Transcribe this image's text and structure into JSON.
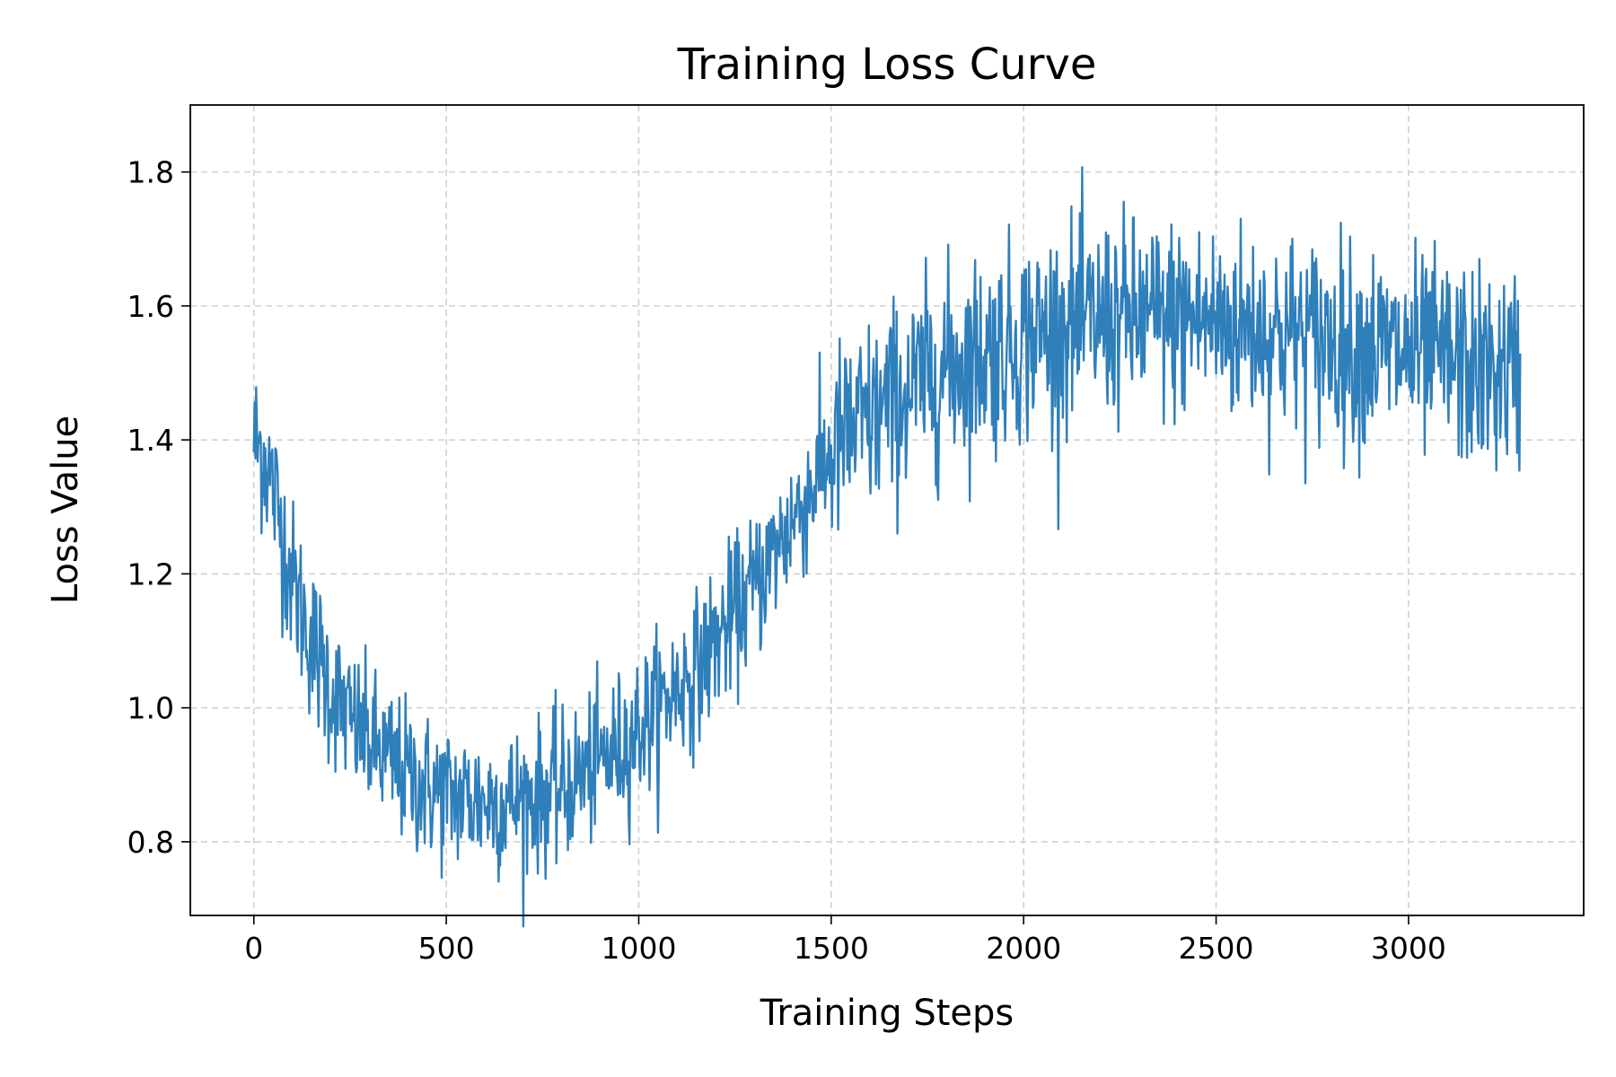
{
  "chart_data": {
    "type": "line",
    "title": "Training Loss Curve",
    "xlabel": "Training Steps",
    "ylabel": "Loss Value",
    "xlim": [
      -165,
      3455
    ],
    "ylim": [
      0.69,
      1.9
    ],
    "xticks": [
      0,
      500,
      1000,
      1500,
      2000,
      2500,
      3000
    ],
    "xtick_labels": [
      "0",
      "500",
      "1000",
      "1500",
      "2000",
      "2500",
      "3000"
    ],
    "yticks": [
      0.8,
      1.0,
      1.2,
      1.4,
      1.6,
      1.8
    ],
    "ytick_labels": [
      "0.8",
      "1.0",
      "1.2",
      "1.4",
      "1.6",
      "1.8"
    ],
    "grid": true,
    "color": "#2f7fbb",
    "series": [
      {
        "x": [
          0,
          25,
          50,
          75,
          100,
          150,
          200,
          250,
          300,
          350,
          400,
          450,
          500,
          550,
          600,
          650,
          700,
          750,
          800,
          850,
          900,
          950,
          1000,
          1050,
          1100,
          1150,
          1200,
          1250,
          1300,
          1350,
          1400,
          1450,
          1500,
          1550,
          1600,
          1650,
          1700,
          1750,
          1800,
          1850,
          1900,
          1950,
          2000,
          2050,
          2100,
          2150,
          2200,
          2250,
          2300,
          2350,
          2400,
          2450,
          2500,
          2550,
          2600,
          2650,
          2700,
          2750,
          2800,
          2850,
          2900,
          2950,
          3000,
          3050,
          3100,
          3150,
          3200,
          3250,
          3290
        ],
        "y": [
          1.4,
          1.38,
          1.33,
          1.26,
          1.19,
          1.1,
          1.03,
          0.98,
          0.95,
          0.92,
          0.9,
          0.88,
          0.87,
          0.865,
          0.86,
          0.86,
          0.865,
          0.87,
          0.88,
          0.9,
          0.92,
          0.94,
          0.97,
          1.0,
          1.03,
          1.06,
          1.1,
          1.14,
          1.18,
          1.23,
          1.28,
          1.33,
          1.38,
          1.41,
          1.43,
          1.45,
          1.47,
          1.49,
          1.51,
          1.52,
          1.53,
          1.54,
          1.55,
          1.56,
          1.57,
          1.57,
          1.58,
          1.58,
          1.58,
          1.58,
          1.58,
          1.58,
          1.575,
          1.57,
          1.57,
          1.56,
          1.56,
          1.55,
          1.55,
          1.54,
          1.54,
          1.53,
          1.53,
          1.52,
          1.52,
          1.51,
          1.5,
          1.5,
          1.5
        ]
      }
    ]
  }
}
